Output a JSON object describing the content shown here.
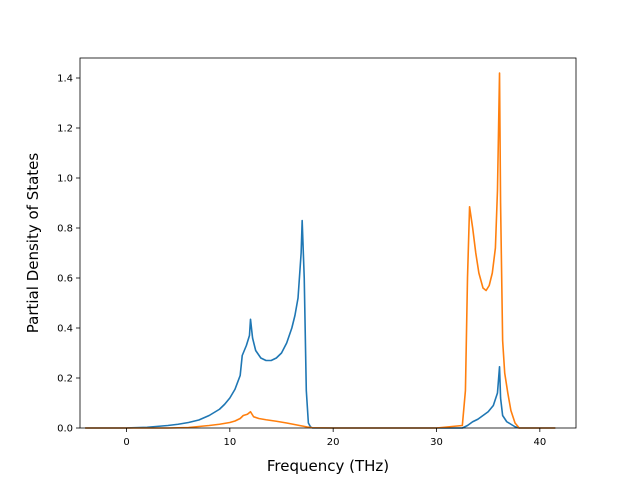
{
  "chart_data": {
    "type": "line",
    "title": "",
    "xlabel": "Frequency (THz)",
    "ylabel": "Partial Density of States",
    "xlim": [
      -4.5,
      43.5
    ],
    "ylim": [
      0,
      1.48
    ],
    "xticks": [
      0,
      10,
      20,
      30,
      40
    ],
    "yticks": [
      0.0,
      0.2,
      0.4,
      0.6,
      0.8,
      1.0,
      1.2,
      1.4
    ],
    "xtick_labels": [
      "0",
      "10",
      "20",
      "30",
      "40"
    ],
    "ytick_labels": [
      "0.0",
      "0.2",
      "0.4",
      "0.6",
      "0.8",
      "1.0",
      "1.2",
      "1.4"
    ],
    "grid": false,
    "legend": false,
    "series": [
      {
        "color": "#1f77b4",
        "x": [
          -4,
          -2,
          0,
          2,
          4,
          5,
          6,
          7,
          8,
          9,
          9.5,
          10,
          10.5,
          11,
          11.2,
          11.6,
          11.9,
          12.0,
          12.2,
          12.5,
          13.0,
          13.5,
          14,
          14.5,
          15,
          15.5,
          16,
          16.3,
          16.6,
          16.9,
          17.0,
          17.2,
          17.4,
          17.6,
          17.8,
          18,
          20,
          25,
          30,
          32.5,
          33.0,
          33.5,
          34,
          34.5,
          35,
          35.5,
          35.9,
          36.1,
          36.2,
          36.4,
          36.8,
          37.2,
          37.6,
          38,
          40,
          41.5
        ],
        "y": [
          0,
          0,
          0,
          0.003,
          0.01,
          0.015,
          0.022,
          0.032,
          0.05,
          0.075,
          0.095,
          0.12,
          0.155,
          0.21,
          0.29,
          0.33,
          0.37,
          0.435,
          0.36,
          0.31,
          0.28,
          0.27,
          0.27,
          0.28,
          0.3,
          0.34,
          0.4,
          0.45,
          0.52,
          0.7,
          0.83,
          0.6,
          0.15,
          0.02,
          0.005,
          0,
          0,
          0,
          0,
          0,
          0.01,
          0.025,
          0.035,
          0.05,
          0.065,
          0.09,
          0.14,
          0.245,
          0.12,
          0.05,
          0.025,
          0.015,
          0.005,
          0,
          0,
          0
        ]
      },
      {
        "color": "#ff7f0e",
        "x": [
          -4,
          -2,
          0,
          2,
          4,
          6,
          8,
          9,
          10,
          10.5,
          11,
          11.3,
          11.7,
          12.0,
          12.3,
          12.8,
          13.5,
          14.5,
          15.5,
          16.5,
          17.0,
          17.5,
          18.0,
          20,
          25,
          30,
          32.5,
          32.8,
          33.0,
          33.2,
          33.5,
          33.8,
          34.1,
          34.5,
          34.8,
          35.1,
          35.4,
          35.7,
          35.9,
          36.1,
          36.2,
          36.4,
          36.6,
          36.9,
          37.2,
          37.6,
          38,
          40,
          41.5
        ],
        "y": [
          0,
          0,
          0,
          0,
          0,
          0.002,
          0.01,
          0.015,
          0.022,
          0.028,
          0.038,
          0.05,
          0.055,
          0.065,
          0.045,
          0.038,
          0.033,
          0.027,
          0.02,
          0.012,
          0.008,
          0.004,
          0.001,
          0,
          0,
          0,
          0.01,
          0.15,
          0.6,
          0.885,
          0.8,
          0.7,
          0.62,
          0.56,
          0.55,
          0.57,
          0.62,
          0.72,
          0.95,
          1.42,
          0.9,
          0.35,
          0.22,
          0.14,
          0.07,
          0.02,
          0,
          0,
          0
        ]
      }
    ]
  }
}
